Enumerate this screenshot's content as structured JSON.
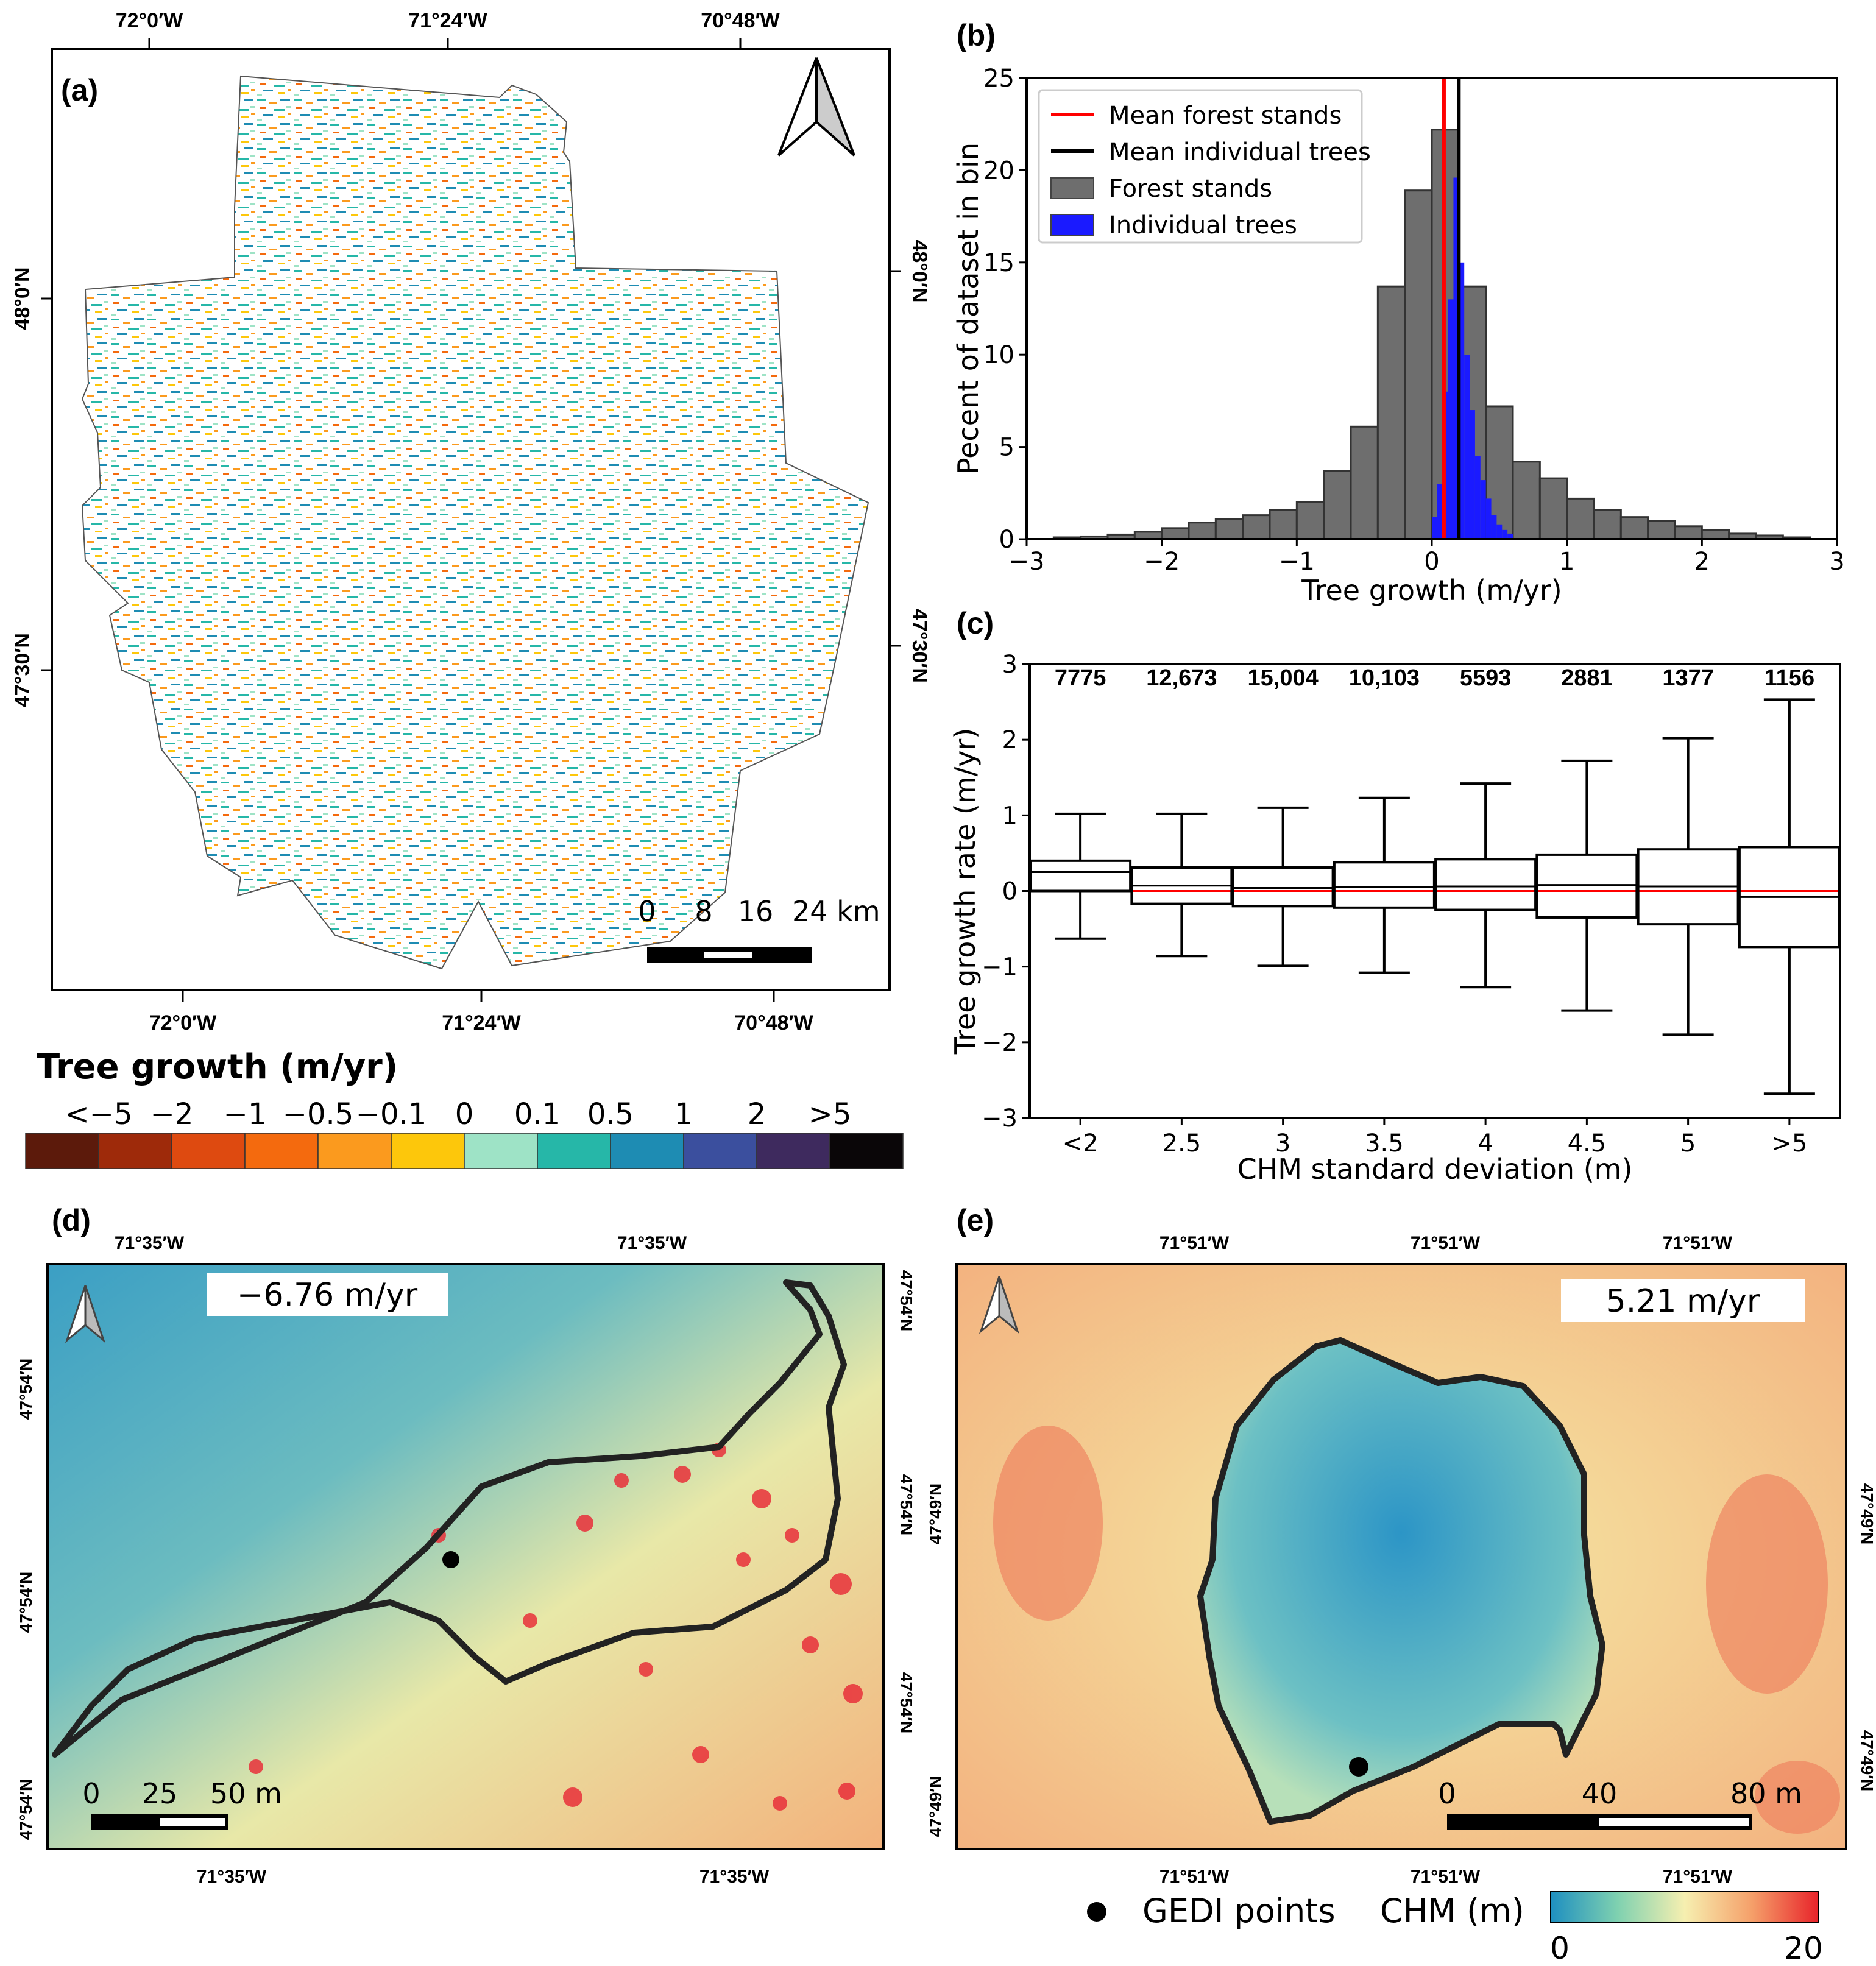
{
  "panels": {
    "a": {
      "label": "(a)",
      "top_lon_ticks": [
        "72°0′W",
        "71°24′W",
        "70°48′W"
      ],
      "bottom_lon_ticks": [
        "72°0′W",
        "71°24′W",
        "70°48′W"
      ],
      "left_lat_ticks": [
        "48°0′N",
        "47°30′N"
      ],
      "right_lat_ticks": [
        "48°0′N",
        "47°30′N"
      ],
      "scalebar": {
        "labels": [
          "0",
          "8",
          "16",
          "24 km"
        ]
      }
    },
    "b": {
      "label": "(b)"
    },
    "c": {
      "label": "(c)"
    },
    "d": {
      "label": "(d)",
      "annotation": "−6.76 m/yr",
      "top_lon_ticks": [
        "71°35′W",
        "71°35′W"
      ],
      "bottom_lon_ticks": [
        "71°35′W",
        "71°35′W"
      ],
      "left_lat_ticks": [
        "47°54′N",
        "47°54′N",
        "47°54′N"
      ],
      "right_lat_ticks": [
        "47°54′N",
        "47°54′N",
        "47°54′N"
      ],
      "scalebar": {
        "labels": [
          "0",
          "25",
          "50 m"
        ]
      }
    },
    "e": {
      "label": "(e)",
      "annotation": "5.21 m/yr",
      "top_lon_ticks": [
        "71°51′W",
        "71°51′W",
        "71°51′W"
      ],
      "bottom_lon_ticks": [
        "71°51′W",
        "71°51′W",
        "71°51′W"
      ],
      "left_lat_ticks": [
        "47°49′N",
        "47°49′N"
      ],
      "right_lat_ticks": [
        "47°49′N",
        "47°49′N"
      ],
      "scalebar": {
        "labels": [
          "0",
          "40",
          "80 m"
        ]
      }
    }
  },
  "colorbar": {
    "title": "Tree growth (m/yr)",
    "labels": [
      "<−5",
      "−2",
      "−1",
      "−0.5",
      "−0.1",
      "0",
      "0.1",
      "0.5",
      "1",
      "2",
      ">5"
    ],
    "colors": [
      "#5c1a0b",
      "#9e2a0a",
      "#de4a10",
      "#f46a0e",
      "#fb9a1e",
      "#fdc70b",
      "#9ee3c6",
      "#26b7a8",
      "#1e8cb3",
      "#3b4f9e",
      "#3e2a5e",
      "#0a0608"
    ]
  },
  "map_legend": {
    "gedi_label": "GEDI points",
    "chm_label": "CHM (m)",
    "chm_min": "0",
    "chm_max": "20"
  },
  "chart_data": [
    {
      "type": "bar",
      "title": "(b)",
      "xlabel": "Tree growth (m/yr)",
      "ylabel": "Pecent of dataset in bin",
      "xlim": [
        -3,
        3
      ],
      "ylim": [
        0,
        25
      ],
      "x_ticks": [
        -3,
        -2,
        -1,
        0,
        1,
        2,
        3
      ],
      "x_tick_labels": [
        "−3",
        "−2",
        "−1",
        "0",
        "1",
        "2",
        "3"
      ],
      "y_ticks": [
        0,
        5,
        10,
        15,
        20,
        25
      ],
      "y_tick_labels": [
        "0",
        "5",
        "10",
        "15",
        "20",
        "25"
      ],
      "legend_position": "top-left",
      "series": [
        {
          "name": "Forest stands",
          "color": "#6e6e6e",
          "bin_width": 0.2,
          "bin_starts": [
            -2.8,
            -2.6,
            -2.4,
            -2.2,
            -2.0,
            -1.8,
            -1.6,
            -1.4,
            -1.2,
            -1.0,
            -0.8,
            -0.6,
            -0.4,
            -0.2,
            0.0,
            0.2,
            0.4,
            0.6,
            0.8,
            1.0,
            1.2,
            1.4,
            1.6,
            1.8,
            2.0,
            2.2,
            2.4,
            2.6
          ],
          "values": [
            0.1,
            0.15,
            0.25,
            0.4,
            0.6,
            0.9,
            1.1,
            1.3,
            1.6,
            2.0,
            3.7,
            6.1,
            13.7,
            18.9,
            22.2,
            13.7,
            7.2,
            4.2,
            3.3,
            2.2,
            1.6,
            1.2,
            1.0,
            0.7,
            0.5,
            0.3,
            0.2,
            0.1
          ]
        },
        {
          "name": "Individual trees",
          "color": "#1a1aff",
          "bin_width": 0.04,
          "bin_starts": [
            0.0,
            0.04,
            0.08,
            0.12,
            0.16,
            0.2,
            0.24,
            0.28,
            0.32,
            0.36,
            0.4,
            0.44,
            0.48,
            0.52,
            0.56
          ],
          "values": [
            1.2,
            3.0,
            8.0,
            13.0,
            19.6,
            15.0,
            10.0,
            7.0,
            4.5,
            3.2,
            2.2,
            1.3,
            0.8,
            0.5,
            0.3
          ]
        },
        {
          "name": "Mean forest stands",
          "type": "vline",
          "x": 0.09,
          "color": "#ff0000"
        },
        {
          "name": "Mean individual trees",
          "type": "vline",
          "x": 0.2,
          "color": "#000000"
        }
      ]
    },
    {
      "type": "box",
      "title": "(c)",
      "xlabel": "CHM standard deviation (m)",
      "ylabel": "Tree growth rate (m/yr)",
      "ylim": [
        -3,
        3
      ],
      "y_ticks": [
        -3,
        -2,
        -1,
        0,
        1,
        2,
        3
      ],
      "y_tick_labels": [
        "−3",
        "−2",
        "−1",
        "0",
        "1",
        "2",
        "3"
      ],
      "reference_line": 0,
      "categories": [
        "<2",
        "2.5",
        "3",
        "3.5",
        "4",
        "4.5",
        "5",
        ">5"
      ],
      "counts": [
        "7775",
        "12,673",
        "15,004",
        "10,103",
        "5593",
        "2881",
        "1377",
        "1156"
      ],
      "whisker_low": [
        -0.63,
        -0.86,
        -0.99,
        -1.08,
        -1.27,
        -1.58,
        -1.9,
        -2.68
      ],
      "q1": [
        0.0,
        -0.17,
        -0.2,
        -0.22,
        -0.25,
        -0.35,
        -0.44,
        -0.74
      ],
      "median": [
        0.25,
        0.07,
        0.04,
        0.05,
        0.06,
        0.08,
        0.06,
        -0.08
      ],
      "q3": [
        0.4,
        0.31,
        0.31,
        0.38,
        0.42,
        0.48,
        0.55,
        0.58
      ],
      "whisker_high": [
        1.02,
        1.02,
        1.1,
        1.23,
        1.42,
        1.72,
        2.02,
        2.53
      ]
    }
  ]
}
